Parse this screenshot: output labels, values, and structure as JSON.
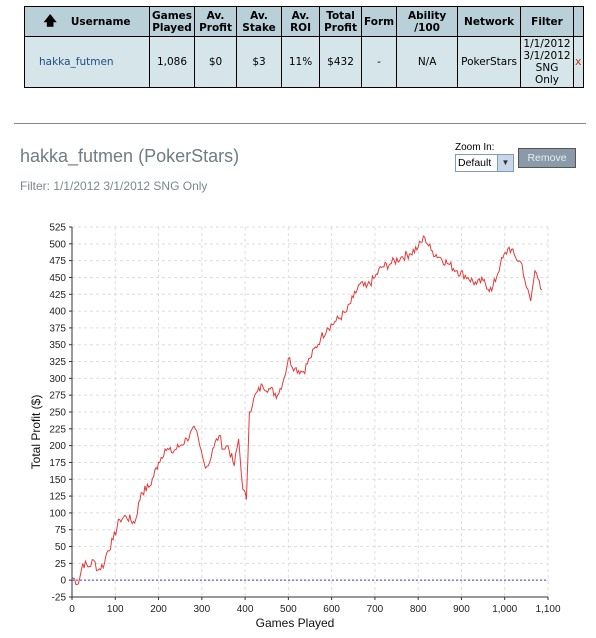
{
  "table": {
    "headers": [
      "Username",
      "Games Played",
      "Av. Profit",
      "Av. Stake",
      "Av. ROI",
      "Total Profit",
      "Form",
      "Ability /100",
      "Network",
      "Filter"
    ],
    "row": {
      "username": "hakka_futmen",
      "games_played": "1,086",
      "av_profit": "$0",
      "av_stake": "$3",
      "av_roi": "11%",
      "total_profit": "$432",
      "form": "-",
      "ability": "N/A",
      "network": "PokerStars",
      "filter": "1/1/2012 3/1/2012 SNG Only",
      "remove": "x"
    }
  },
  "graph": {
    "title": "hakka_futmen (PokerStars)",
    "filter_text": "Filter: 1/1/2012 3/1/2012 SNG Only",
    "zoom_label": "Zoom In:",
    "zoom_value": "Default",
    "remove_label": "Remove"
  },
  "chart_data": {
    "type": "line",
    "xlabel": "Games Played",
    "ylabel": "Total Profit ($)",
    "xlim": [
      0,
      1100
    ],
    "ylim": [
      -25,
      525
    ],
    "x_ticks": [
      0,
      100,
      200,
      300,
      400,
      500,
      600,
      700,
      800,
      900,
      1000,
      1100
    ],
    "x_tick_labels": [
      "0",
      "100",
      "200",
      "300",
      "400",
      "500",
      "600",
      "700",
      "800",
      "900",
      "1,000",
      "1,100"
    ],
    "y_ticks": [
      -25,
      0,
      25,
      50,
      75,
      100,
      125,
      150,
      175,
      200,
      225,
      250,
      275,
      300,
      325,
      350,
      375,
      400,
      425,
      450,
      475,
      500,
      525
    ],
    "grid": true,
    "colors": {
      "line": "#e53b3b",
      "zero_line": "#3b3bd9"
    },
    "series": [
      {
        "x": [
          0,
          15,
          25,
          40,
          50,
          60,
          75,
          80,
          95,
          110,
          125,
          145,
          160,
          180,
          200,
          215,
          230,
          250,
          265,
          285,
          295,
          305,
          315,
          325,
          340,
          350,
          360,
          375,
          385,
          395,
          403,
          410,
          420,
          440,
          455,
          475,
          490,
          500,
          515,
          535,
          550,
          575,
          590,
          610,
          635,
          650,
          665,
          680,
          700,
          715,
          735,
          760,
          780,
          800,
          815,
          830,
          850,
          870,
          890,
          915,
          935,
          950,
          970,
          990,
          1010,
          1025,
          1040,
          1050,
          1060,
          1070,
          1080,
          1086
        ],
        "y": [
          5,
          -5,
          25,
          20,
          30,
          15,
          25,
          40,
          60,
          90,
          95,
          85,
          130,
          140,
          175,
          195,
          190,
          200,
          210,
          225,
          200,
          175,
          170,
          195,
          215,
          195,
          200,
          170,
          210,
          135,
          120,
          250,
          270,
          290,
          285,
          275,
          300,
          330,
          315,
          310,
          330,
          360,
          375,
          385,
          400,
          420,
          440,
          435,
          450,
          465,
          470,
          480,
          485,
          495,
          510,
          490,
          480,
          470,
          460,
          450,
          440,
          445,
          430,
          470,
          495,
          480,
          470,
          435,
          415,
          460,
          445,
          432
        ]
      }
    ]
  }
}
